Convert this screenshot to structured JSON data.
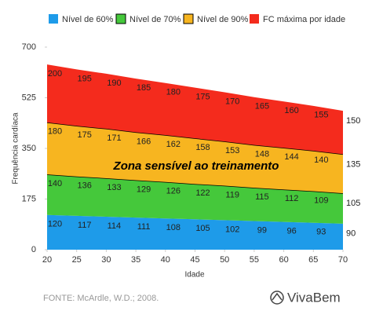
{
  "chart_data": {
    "type": "stacked_area",
    "x": [
      20,
      25,
      30,
      35,
      40,
      45,
      50,
      55,
      60,
      65,
      70
    ],
    "series": [
      {
        "name": "Nível de 60%",
        "color": "#1e9be9",
        "values": [
          120,
          117,
          114,
          111,
          108,
          105,
          102,
          99,
          96,
          93,
          90
        ]
      },
      {
        "name": "Nível de 70%",
        "color": "#45c83b",
        "values": [
          140,
          136,
          133,
          129,
          126,
          122,
          119,
          115,
          112,
          109,
          105
        ]
      },
      {
        "name": "Nível de 90%",
        "color": "#f7b520",
        "values": [
          180,
          175,
          171,
          166,
          162,
          158,
          153,
          148,
          144,
          140,
          135
        ]
      },
      {
        "name": "FC máxima por idade",
        "color": "#f42b1d",
        "values": [
          200,
          195,
          190,
          185,
          180,
          175,
          170,
          165,
          160,
          155,
          150
        ]
      }
    ],
    "xlim": [
      20,
      70
    ],
    "xticks": [
      20,
      25,
      30,
      35,
      40,
      45,
      50,
      55,
      60,
      65,
      70
    ],
    "ylim": [
      0,
      700
    ],
    "yticks": [
      0,
      175,
      350,
      525,
      700
    ],
    "xlabel": "Idade",
    "ylabel": "Frequência cardíaca",
    "annotation": "Zona sensível ao treinamento",
    "source": "FONTE: McArdle, W.D.; 2008.",
    "logo": "VivaBem",
    "grid": false,
    "legend": "top"
  }
}
